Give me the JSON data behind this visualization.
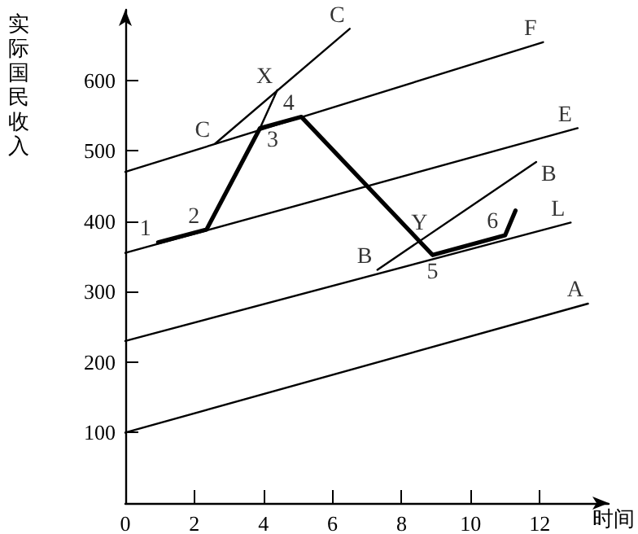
{
  "chart_data": {
    "type": "line",
    "xlabel": "时间",
    "ylabel": "实际国民收入",
    "xlim": [
      0,
      14
    ],
    "ylim": [
      0,
      700
    ],
    "xticks": [
      0,
      2,
      4,
      6,
      8,
      10,
      12
    ],
    "yticks": [
      100,
      200,
      300,
      400,
      500,
      600
    ],
    "grid": false,
    "marker": "none",
    "line_style": "solid",
    "series": [
      {
        "color": "#000000",
        "x": [
          0,
          13.4
        ],
        "values": [
          100,
          283
        ]
      },
      {
        "color": "#000000",
        "x": [
          0,
          12.9
        ],
        "values": [
          230,
          398
        ]
      },
      {
        "color": "#000000",
        "x": [
          0,
          13.1
        ],
        "values": [
          355,
          532
        ]
      },
      {
        "color": "#000000",
        "x": [
          0,
          12.1
        ],
        "values": [
          470,
          654
        ]
      },
      {
        "color": "#000000",
        "x": [
          7.3,
          11.9
        ],
        "values": [
          331,
          484
        ]
      },
      {
        "color": "#000000",
        "x": [
          2.6,
          6.5
        ],
        "values": [
          510,
          673
        ]
      },
      {
        "color": "#000000",
        "x": [
          3.9,
          4.4
        ],
        "values": [
          532,
          586
        ]
      },
      {
        "color": "#000000",
        "x": [
          0.95,
          2.35,
          3.9,
          5.1,
          8.9,
          11.0,
          11.3
        ],
        "values": [
          370,
          388,
          532,
          548,
          352,
          380,
          415
        ]
      }
    ],
    "annotations": [
      {
        "text": "1",
        "x": 0.95,
        "y": 370
      },
      {
        "text": "2",
        "x": 2.35,
        "y": 388
      },
      {
        "text": "3",
        "x": 3.9,
        "y": 532
      },
      {
        "text": "4",
        "x": 5.1,
        "y": 548
      },
      {
        "text": "X",
        "x": 4.4,
        "y": 586
      },
      {
        "text": "Y",
        "x": 8.52,
        "y": 371
      },
      {
        "text": "5",
        "x": 8.9,
        "y": 352
      },
      {
        "text": "6",
        "x": 11.0,
        "y": 380
      },
      {
        "text": "C",
        "x": 2.6,
        "y": 510
      },
      {
        "text": "C",
        "x": 6.5,
        "y": 673
      },
      {
        "text": "F",
        "x": 12.1,
        "y": 654
      },
      {
        "text": "E",
        "x": 13.1,
        "y": 532
      },
      {
        "text": "B",
        "x": 11.9,
        "y": 484
      },
      {
        "text": "B",
        "x": 7.3,
        "y": 331
      },
      {
        "text": "L",
        "x": 12.9,
        "y": 398
      },
      {
        "text": "A",
        "x": 13.4,
        "y": 283
      }
    ]
  }
}
